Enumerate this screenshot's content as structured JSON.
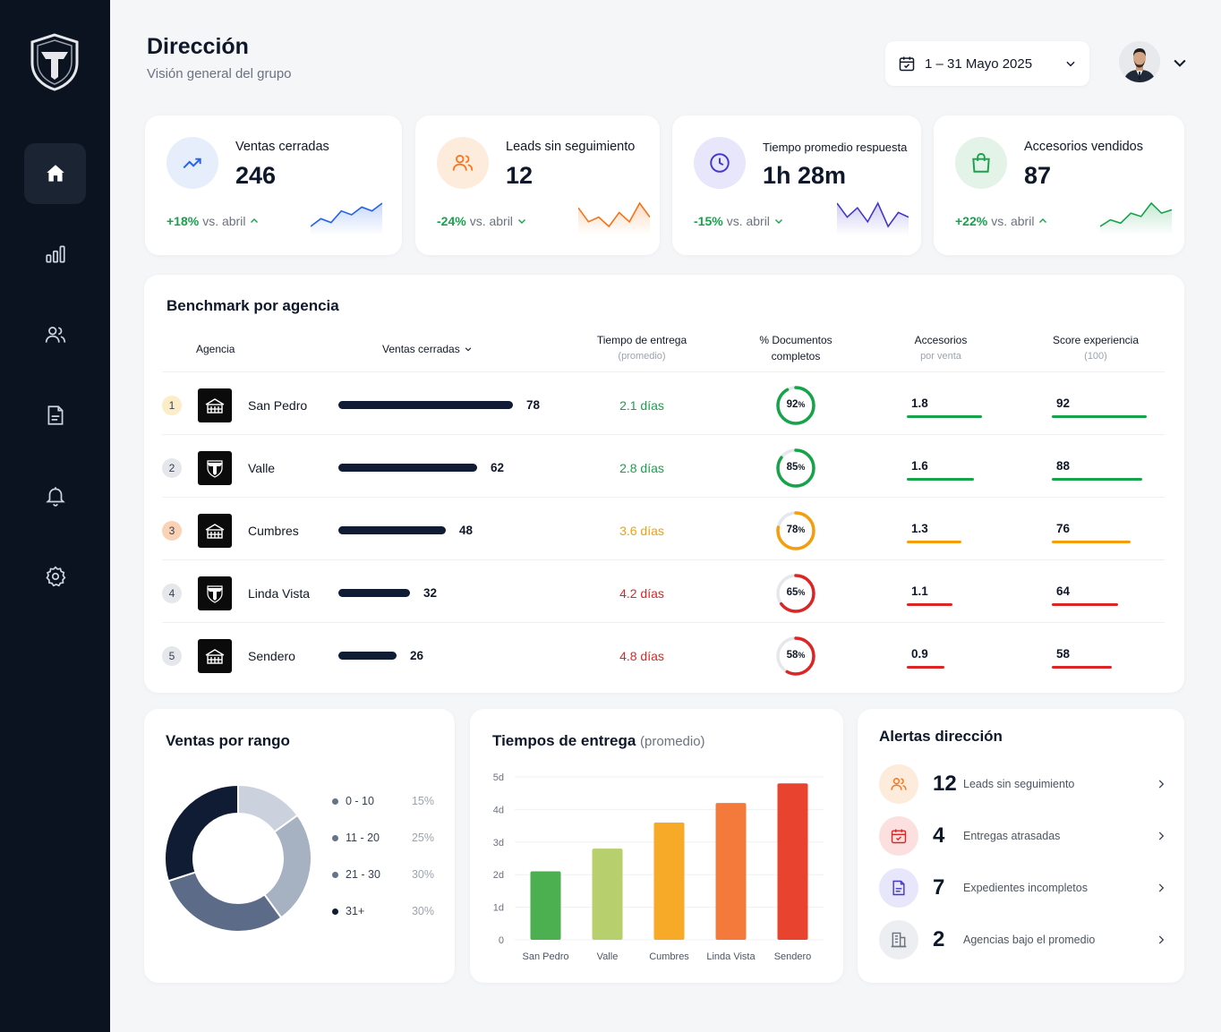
{
  "header": {
    "title": "Dirección",
    "subtitle": "Visión general del grupo",
    "date_range": "1 – 31 Mayo 2025"
  },
  "sidebar": {
    "items": [
      {
        "icon": "home-icon",
        "active": true
      },
      {
        "icon": "bar-chart-icon",
        "active": false
      },
      {
        "icon": "users-icon",
        "active": false
      },
      {
        "icon": "document-icon",
        "active": false
      },
      {
        "icon": "bell-icon",
        "active": false
      },
      {
        "icon": "gear-icon",
        "active": false
      }
    ]
  },
  "kpis": [
    {
      "label": "Ventas cerradas",
      "value": "246",
      "delta": "+18%",
      "compare": "vs. abril",
      "trend": "up",
      "color": "#2563eb",
      "icon": "trend-up-icon",
      "spark": [
        3,
        5,
        4,
        7,
        6,
        8,
        7,
        9
      ]
    },
    {
      "label": "Leads sin seguimiento",
      "value": "12",
      "delta": "-24%",
      "compare": "vs. abril",
      "trend": "down",
      "color": "#f97316",
      "icon": "users-icon",
      "spark": [
        7,
        4,
        5,
        3,
        6,
        4,
        8,
        5
      ]
    },
    {
      "label": "Tiempo promedio respuesta",
      "value": "1h 28m",
      "delta": "-15%",
      "compare": "vs. abril",
      "trend": "down",
      "color": "#4338ca",
      "icon": "clock-icon",
      "spark": [
        7,
        4,
        6,
        3,
        7,
        2,
        5,
        4
      ]
    },
    {
      "label": "Accesorios vendidos",
      "value": "87",
      "delta": "+22%",
      "compare": "vs. abril",
      "trend": "up",
      "color": "#16a34a",
      "icon": "shopping-bag-icon",
      "spark": [
        2,
        4,
        3,
        6,
        5,
        9,
        6,
        7
      ]
    }
  ],
  "benchmark": {
    "title": "Benchmark por agencia",
    "headers": {
      "agency": "Agencia",
      "sales": "Ventas cerradas",
      "delivery": "Tiempo de entrega",
      "delivery_sub": "(promedio)",
      "docs": "% Documentos",
      "docs_line2": "completos",
      "accessories": "Accesorios",
      "accessories_sub": "por venta",
      "score": "Score experiencia",
      "score_sub": "(100)"
    },
    "rows": [
      {
        "rank": "1",
        "name": "San Pedro",
        "sales": 78,
        "delivery": "2.1 días",
        "docs": 92,
        "accessories": "1.8",
        "accessories_value": 1.8,
        "score": 92,
        "logo": "building-icon",
        "status": "green"
      },
      {
        "rank": "2",
        "name": "Valle",
        "sales": 62,
        "delivery": "2.8 días",
        "docs": 85,
        "accessories": "1.6",
        "accessories_value": 1.6,
        "score": 88,
        "logo": "shield-logo-icon",
        "status": "green"
      },
      {
        "rank": "3",
        "name": "Cumbres",
        "sales": 48,
        "delivery": "3.6 días",
        "docs": 78,
        "accessories": "1.3",
        "accessories_value": 1.3,
        "score": 76,
        "logo": "building-icon",
        "status": "orange"
      },
      {
        "rank": "4",
        "name": "Linda Vista",
        "sales": 32,
        "delivery": "4.2 días",
        "docs": 65,
        "accessories": "1.1",
        "accessories_value": 1.1,
        "score": 64,
        "logo": "shield-logo-icon",
        "status": "red"
      },
      {
        "rank": "5",
        "name": "Sendero",
        "sales": 26,
        "delivery": "4.8 días",
        "docs": 58,
        "accessories": "0.9",
        "accessories_value": 0.9,
        "score": 58,
        "logo": "building-icon",
        "status": "red"
      }
    ],
    "colors": {
      "green": "#16a34a",
      "orange": "#f59e0b",
      "red": "#dc2626"
    }
  },
  "sales_range": {
    "title": "Ventas por rango",
    "items": [
      {
        "label": "0 - 10",
        "pct": "15%",
        "value": 15,
        "color": "#cbd2dd"
      },
      {
        "label": "11 - 20",
        "pct": "25%",
        "value": 25,
        "color": "#a6b1c2"
      },
      {
        "label": "21 - 30",
        "pct": "30%",
        "value": 30,
        "color": "#5b6b88"
      },
      {
        "label": "31+",
        "pct": "30%",
        "value": 30,
        "color": "#0f1c33"
      }
    ]
  },
  "delivery_chart": {
    "title": "Tiempos de entrega",
    "title_suffix": "(promedio)",
    "chart_data": {
      "type": "bar",
      "categories": [
        "San Pedro",
        "Valle",
        "Cumbres",
        "Linda Vista",
        "Sendero"
      ],
      "values": [
        2.1,
        2.8,
        3.6,
        4.2,
        4.8
      ],
      "colors": [
        "#4caf50",
        "#b8cf6d",
        "#f7a928",
        "#f47a3c",
        "#e8432f"
      ],
      "y_ticks": [
        "0",
        "1d",
        "2d",
        "3d",
        "4d",
        "5d"
      ],
      "ylim": [
        0,
        5
      ]
    }
  },
  "alerts": {
    "title": "Alertas dirección",
    "items": [
      {
        "count": "12",
        "label": "Leads sin seguimiento",
        "icon": "users-icon",
        "color": "#f97316",
        "bg": "#fdebdc"
      },
      {
        "count": "4",
        "label": "Entregas atrasadas",
        "icon": "calendar-icon",
        "color": "#dc2626",
        "bg": "#fbe0df"
      },
      {
        "count": "7",
        "label": "Expedientes incompletos",
        "icon": "document-icon",
        "color": "#4338ca",
        "bg": "#e7e6fb"
      },
      {
        "count": "2",
        "label": "Agencias bajo el promedio",
        "icon": "building-icon",
        "color": "#6b7280",
        "bg": "#eceef1"
      }
    ]
  }
}
